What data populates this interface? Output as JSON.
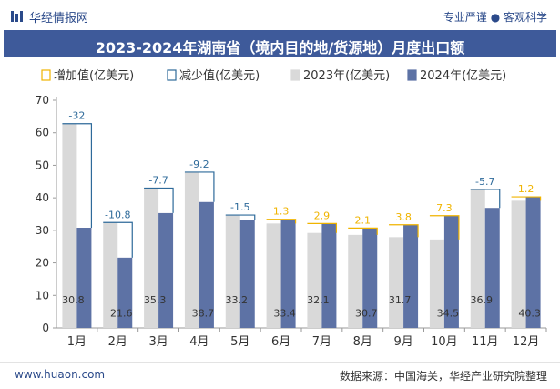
{
  "header": {
    "brand": "华经情报网",
    "tagline": "专业严谨 ● 客观科学",
    "title": "2023-2024年湖南省（境内目的地/货源地）月度出口额"
  },
  "footer": {
    "site": "www.huaon.com",
    "source": "数据来源：中国海关，华经产业研究院整理"
  },
  "colors": {
    "increase": "#f0b400",
    "decrease": "#2e6a9a",
    "y2023": "#d9d9d9",
    "y2024": "#5d72a5",
    "title_bg": "#3e5a9a"
  },
  "chart_data": {
    "type": "bar",
    "categories": [
      "1月",
      "2月",
      "3月",
      "4月",
      "5月",
      "6月",
      "7月",
      "8月",
      "9月",
      "10月",
      "11月",
      "12月"
    ],
    "series": [
      {
        "name": "2023年(亿美元)",
        "values": [
          62.8,
          32.4,
          43.0,
          47.9,
          34.7,
          32.1,
          29.2,
          28.6,
          27.9,
          27.2,
          42.6,
          39.1
        ]
      },
      {
        "name": "2024年(亿美元)",
        "values": [
          30.8,
          21.6,
          35.3,
          38.7,
          33.2,
          33.4,
          32.1,
          30.7,
          31.7,
          34.5,
          36.9,
          40.3
        ]
      }
    ],
    "change_labels": [
      "-32",
      "-10.8",
      "-7.7",
      "-9.2",
      "-1.5",
      "1.3",
      "2.9",
      "2.1",
      "3.8",
      "7.3",
      "-5.7",
      "1.2"
    ],
    "value_labels_2024": [
      "30.8",
      "21.6",
      "35.3",
      "38.7",
      "33.2",
      "33.4",
      "32.1",
      "30.7",
      "31.7",
      "34.5",
      "36.9",
      "40.3"
    ],
    "legend": [
      "增加值(亿美元)",
      "减少值(亿美元)",
      "2023年(亿美元)",
      "2024年(亿美元)"
    ],
    "legend_position": "top",
    "y_ticks": [
      "0",
      "10",
      "20",
      "30",
      "40",
      "50",
      "60",
      "70"
    ],
    "ylim": [
      0,
      70
    ],
    "xlabel": "",
    "ylabel": "",
    "grid": false
  }
}
